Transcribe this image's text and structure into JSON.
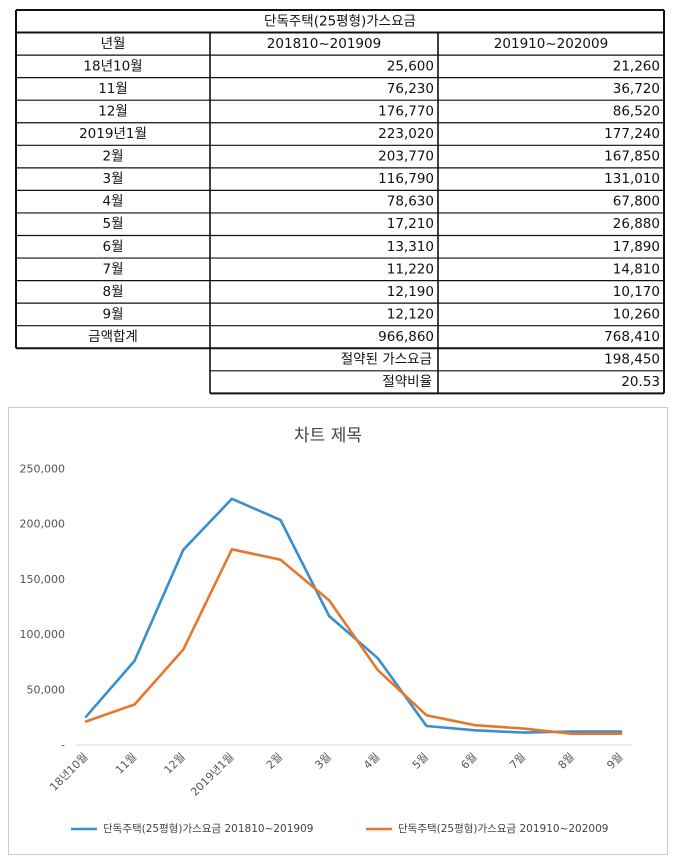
{
  "table": {
    "title": "단독주택(25평형)가스요금",
    "headers": [
      "년월",
      "201810~201909",
      "201910~202009"
    ],
    "rows": [
      [
        "18년10월",
        "25,600",
        "21,260"
      ],
      [
        "11월",
        "76,230",
        "36,720"
      ],
      [
        "12월",
        "176,770",
        "86,520"
      ],
      [
        "2019년1월",
        "223,020",
        "177,240"
      ],
      [
        "2월",
        "203,770",
        "167,850"
      ],
      [
        "3월",
        "116,790",
        "131,010"
      ],
      [
        "4월",
        "78,630",
        "67,800"
      ],
      [
        "5월",
        "17,210",
        "26,880"
      ],
      [
        "6월",
        "13,310",
        "17,890"
      ],
      [
        "7월",
        "11,220",
        "14,810"
      ],
      [
        "8월",
        "12,190",
        "10,170"
      ],
      [
        "9월",
        "12,120",
        "10,260"
      ]
    ],
    "total_row": [
      "금액합계",
      "966,860",
      "768,410"
    ],
    "extra_rows": [
      [
        "절약된 가스요금",
        "198,450"
      ],
      [
        "절약비율",
        "20.53"
      ]
    ]
  },
  "chart_data": {
    "type": "line",
    "title": "차트 제목",
    "categories": [
      "18년10월",
      "11월",
      "12월",
      "2019년1월",
      "2월",
      "3월",
      "4월",
      "5월",
      "6월",
      "7월",
      "8월",
      "9월"
    ],
    "series": [
      {
        "name": "단독주택(25평형)가스요금  201810~201909",
        "color": "#3a8fcd",
        "values": [
          25600,
          76230,
          176770,
          223020,
          203770,
          116790,
          78630,
          17210,
          13310,
          11220,
          12190,
          12120
        ]
      },
      {
        "name": "단독주택(25평형)가스요금  201910~202009",
        "color": "#e8772e",
        "values": [
          21260,
          36720,
          86520,
          177240,
          167850,
          131010,
          67800,
          26880,
          17890,
          14810,
          10170,
          10260
        ]
      }
    ],
    "yticks": [
      "-",
      "50,000",
      "100,000",
      "150,000",
      "200,000",
      "250,000"
    ],
    "ylim": [
      0,
      250000
    ],
    "grid": false,
    "legend": "bottom"
  }
}
